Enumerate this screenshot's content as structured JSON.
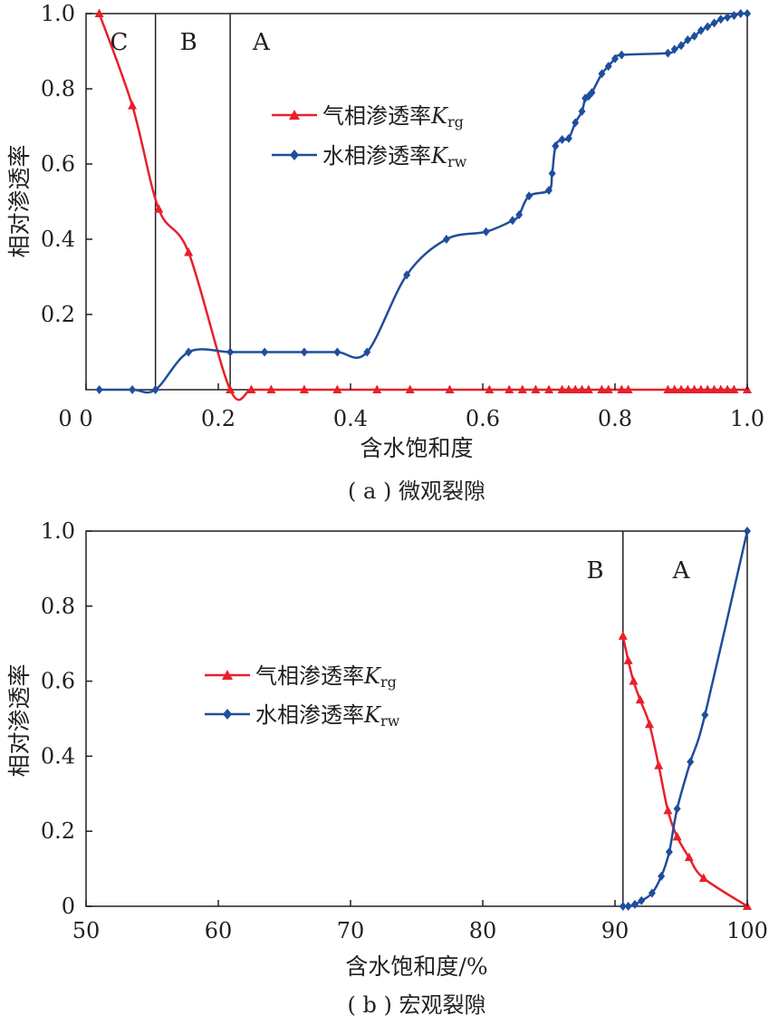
{
  "chart_data": [
    {
      "type": "line",
      "caption": "( a ) 微观裂隙",
      "xlabel": "含水饱和度",
      "ylabel": "相对渗透率",
      "xlim": [
        0,
        1.0
      ],
      "ylim": [
        0,
        1.0
      ],
      "x_ticks": [
        "0",
        "0.2",
        "0.4",
        "0.6",
        "0.8",
        "1.0"
      ],
      "x_tick_values": [
        0,
        0.2,
        0.4,
        0.6,
        0.8,
        1.0
      ],
      "y_ticks": [
        "0.2",
        "0.4",
        "0.6",
        "0.8",
        "1.0"
      ],
      "y_tick_values": [
        0.2,
        0.4,
        0.6,
        0.8,
        1.0
      ],
      "regions": [
        {
          "label": "C",
          "x": 0.05
        },
        {
          "label": "B",
          "x": 0.155
        },
        {
          "label": "A",
          "x": 0.265
        }
      ],
      "dividers": [
        0.105,
        0.218
      ],
      "legend_position": "upper-center",
      "series": [
        {
          "name": "气相渗透率",
          "legend_symbol": "K",
          "legend_sub": "rg",
          "color": "#e8202a",
          "marker": "triangle",
          "x": [
            0.02,
            0.07,
            0.11,
            0.155,
            0.218,
            0.25,
            0.28,
            0.33,
            0.38,
            0.44,
            0.49,
            0.55,
            0.61,
            0.64,
            0.66,
            0.68,
            0.7,
            0.72,
            0.73,
            0.74,
            0.75,
            0.76,
            0.78,
            0.79,
            0.81,
            0.82,
            0.88,
            0.89,
            0.9,
            0.91,
            0.92,
            0.93,
            0.94,
            0.95,
            0.96,
            0.97,
            0.98,
            1.0
          ],
          "y": [
            1.0,
            0.755,
            0.48,
            0.365,
            0.0,
            0,
            0,
            0,
            0,
            0,
            0,
            0,
            0,
            0,
            0,
            0,
            0,
            0,
            0,
            0,
            0,
            0,
            0,
            0,
            0,
            0,
            0,
            0,
            0,
            0,
            0,
            0,
            0,
            0,
            0,
            0,
            0,
            0
          ]
        },
        {
          "name": "水相渗透率",
          "legend_symbol": "K",
          "legend_sub": "rw",
          "color": "#1f4e9c",
          "marker": "diamond",
          "x": [
            0.02,
            0.07,
            0.105,
            0.155,
            0.218,
            0.27,
            0.33,
            0.38,
            0.425,
            0.485,
            0.545,
            0.605,
            0.645,
            0.655,
            0.67,
            0.7,
            0.705,
            0.71,
            0.72,
            0.73,
            0.74,
            0.75,
            0.755,
            0.76,
            0.765,
            0.78,
            0.79,
            0.8,
            0.81,
            0.88,
            0.89,
            0.9,
            0.91,
            0.92,
            0.93,
            0.94,
            0.95,
            0.96,
            0.97,
            0.98,
            0.99,
            1.0
          ],
          "y": [
            0.0,
            0.0,
            0.0,
            0.1,
            0.1,
            0.1,
            0.1,
            0.1,
            0.1,
            0.305,
            0.4,
            0.42,
            0.45,
            0.465,
            0.515,
            0.53,
            0.575,
            0.648,
            0.665,
            0.668,
            0.71,
            0.74,
            0.775,
            0.78,
            0.79,
            0.84,
            0.86,
            0.88,
            0.89,
            0.895,
            0.905,
            0.915,
            0.93,
            0.94,
            0.955,
            0.965,
            0.975,
            0.985,
            0.99,
            0.995,
            1.0,
            1.0
          ]
        }
      ]
    },
    {
      "type": "line",
      "caption": "( b ) 宏观裂隙",
      "xlabel": "含水饱和度/%",
      "ylabel": "相对渗透率",
      "xlim": [
        50,
        100
      ],
      "ylim": [
        0,
        1.0
      ],
      "x_ticks": [
        "50",
        "60",
        "70",
        "80",
        "90",
        "100"
      ],
      "x_tick_values": [
        50,
        60,
        70,
        80,
        90,
        100
      ],
      "y_ticks": [
        "0",
        "0.2",
        "0.4",
        "0.6",
        "0.8",
        "1.0"
      ],
      "y_tick_values": [
        0,
        0.2,
        0.4,
        0.6,
        0.8,
        1.0
      ],
      "regions": [
        {
          "label": "B",
          "x": 88.5
        },
        {
          "label": "A",
          "x": 95.0
        }
      ],
      "dividers": [
        90.6
      ],
      "legend_position": "center-left",
      "series": [
        {
          "name": "气相渗透率",
          "legend_symbol": "K",
          "legend_sub": "rg",
          "color": "#e8202a",
          "marker": "triangle",
          "x": [
            90.6,
            91.0,
            91.4,
            91.9,
            92.6,
            93.3,
            94.0,
            94.7,
            95.6,
            96.7,
            100.0
          ],
          "y": [
            0.72,
            0.655,
            0.6,
            0.55,
            0.485,
            0.375,
            0.255,
            0.185,
            0.13,
            0.075,
            0.0
          ]
        },
        {
          "name": "水相渗透率",
          "legend_symbol": "K",
          "legend_sub": "rw",
          "color": "#1f4e9c",
          "marker": "diamond",
          "x": [
            90.6,
            91.0,
            91.5,
            92.0,
            92.8,
            93.5,
            94.1,
            94.7,
            95.7,
            96.8,
            100.0
          ],
          "y": [
            0.0,
            0.0,
            0.005,
            0.015,
            0.035,
            0.08,
            0.145,
            0.26,
            0.385,
            0.51,
            1.0
          ]
        }
      ]
    }
  ]
}
